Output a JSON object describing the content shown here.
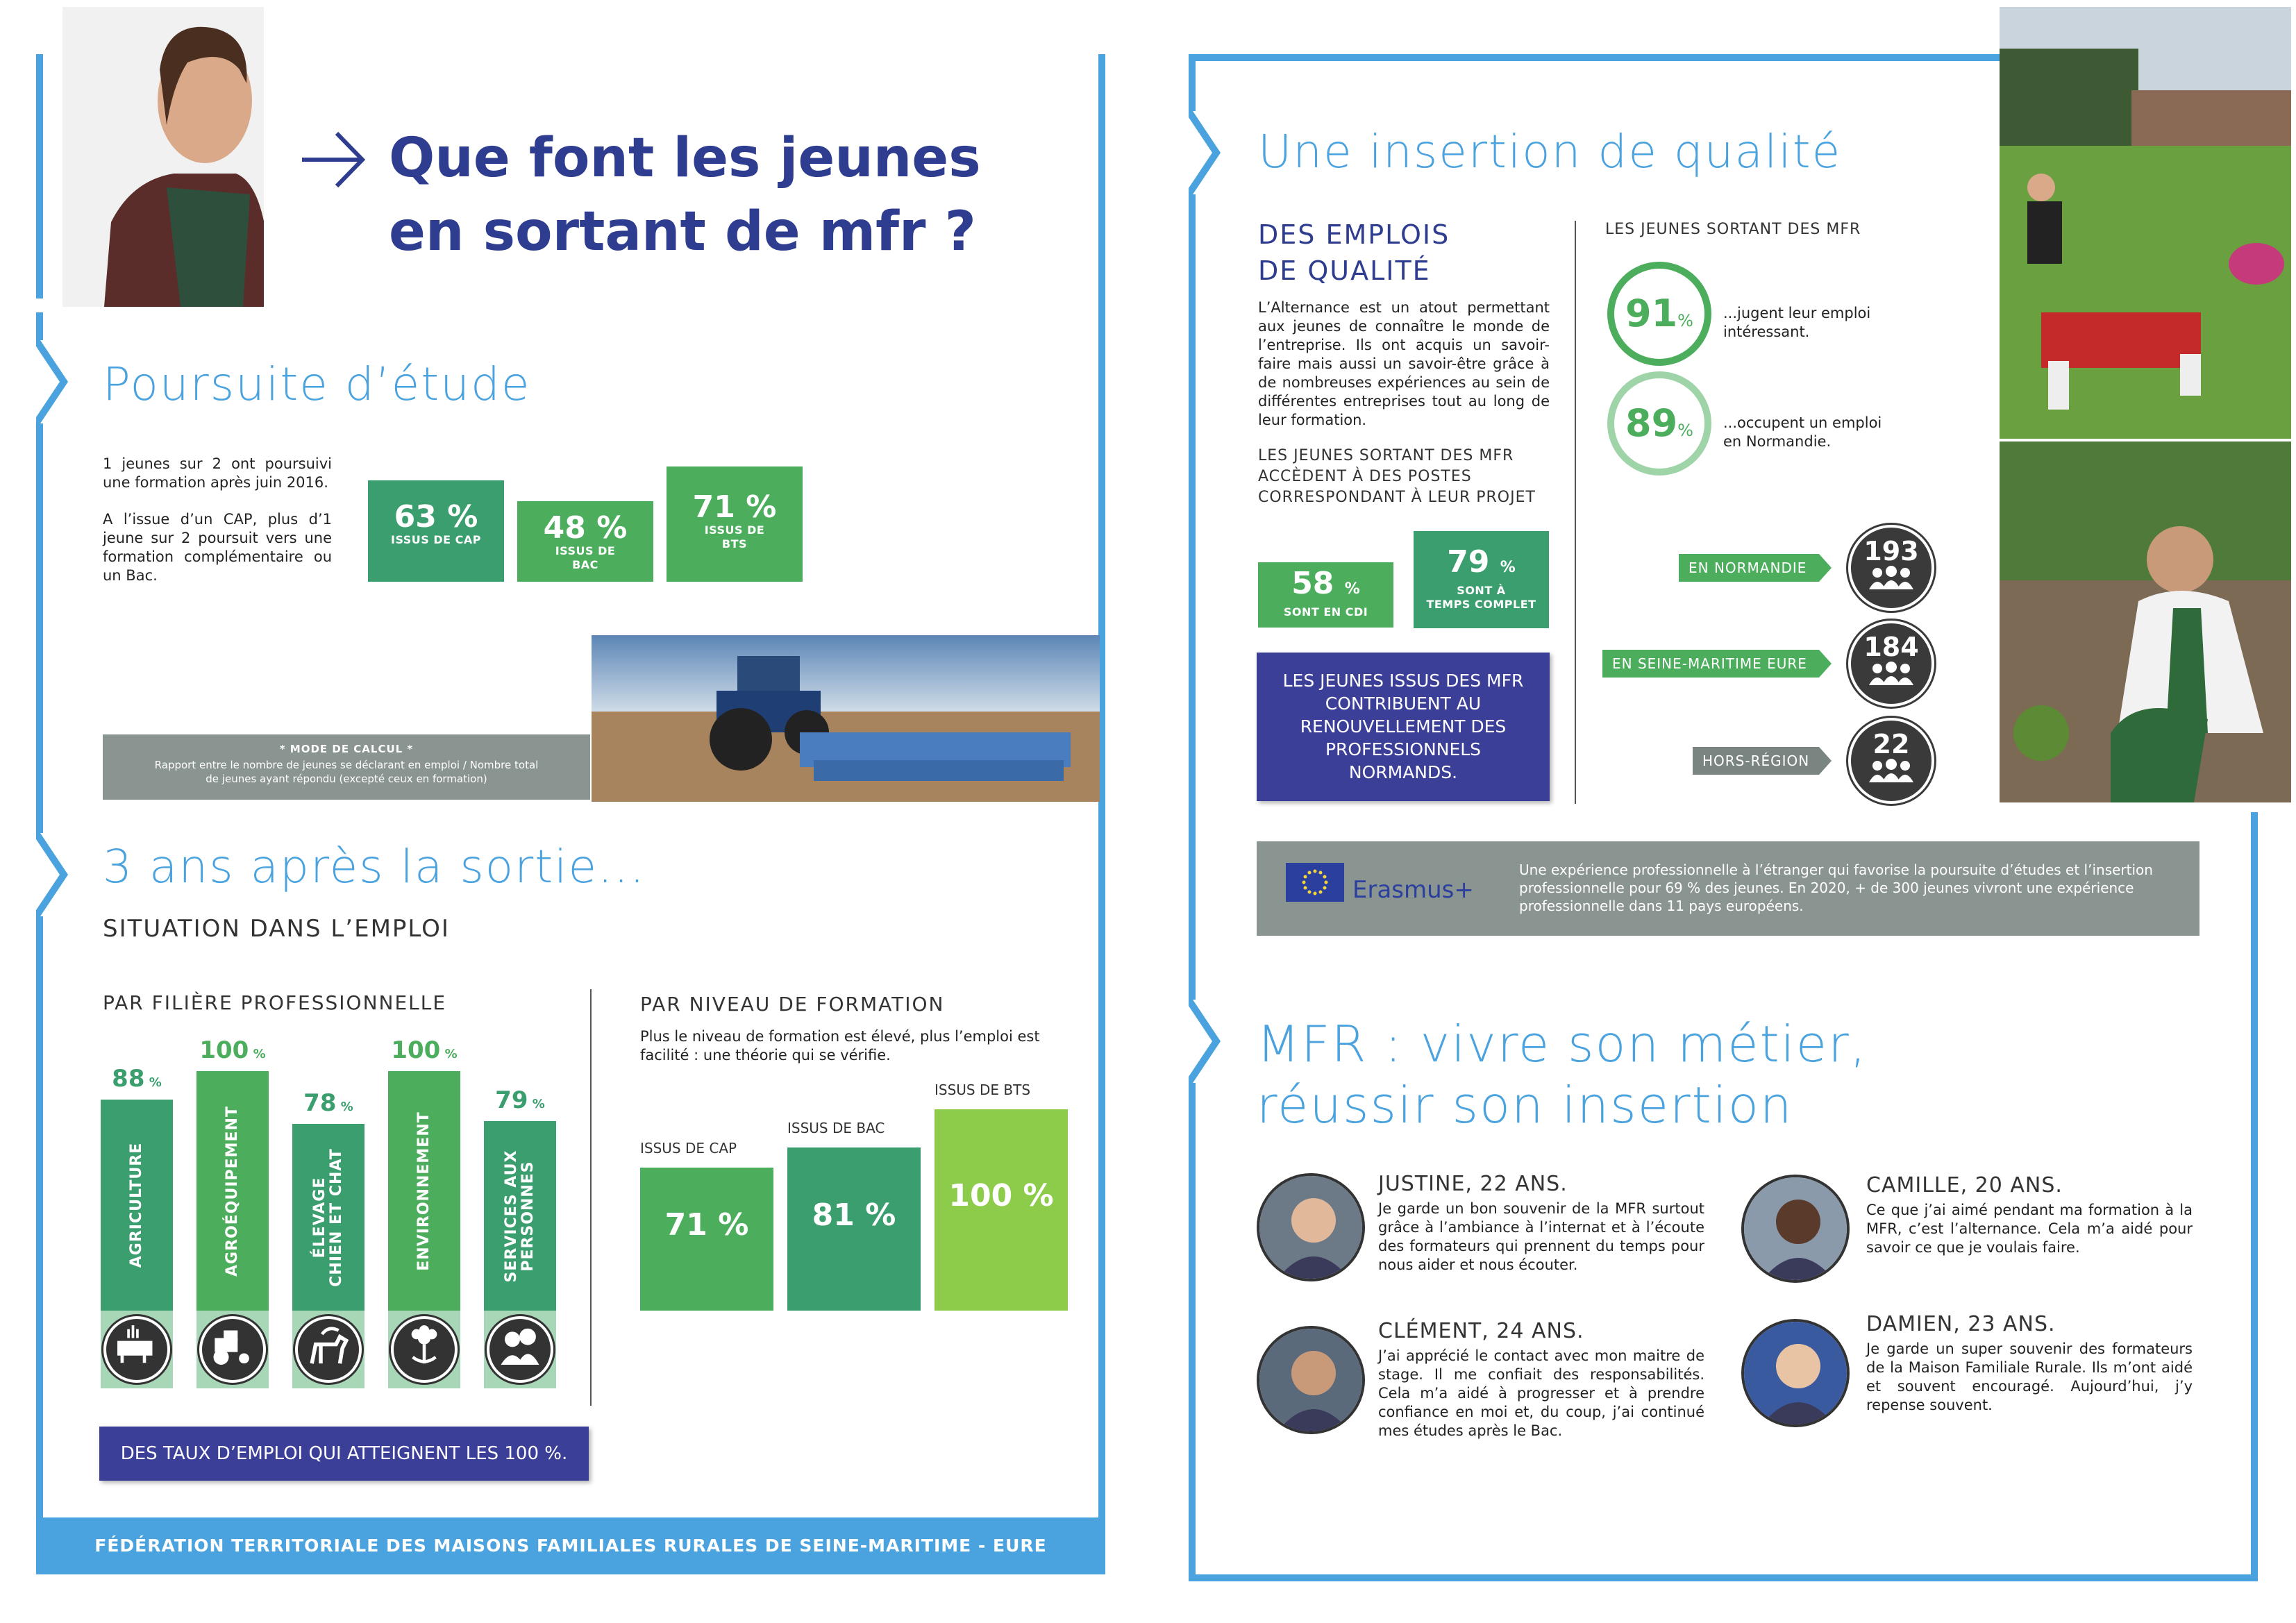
{
  "header": {
    "title_line1": "Que font les jeunes",
    "title_line2": "en sortant de mfr ?"
  },
  "poursuite": {
    "title": "Poursuite d’étude",
    "para1": "1 jeunes sur 2 ont poursuivi une formation après juin 2016.",
    "para2": "A l’issue d’un CAP, plus d’1 jeune sur 2 poursuit vers une formation complémentaire ou un Bac.",
    "boxes": [
      {
        "value": "63 %",
        "label": "ISSUS DE CAP"
      },
      {
        "value": "48 %",
        "label": "ISSUS DE BAC"
      },
      {
        "value": "71 %",
        "label": "ISSUS DE BTS"
      }
    ],
    "mode_title": "* MODE DE CALCUL *",
    "mode_text": "Rapport entre le nombre de jeunes se déclarant en emploi / Nombre total de jeunes ayant répondu (excepté ceux en formation)"
  },
  "trois_ans": {
    "title": "3 ans après la sortie...",
    "subtitle": "SITUATION DANS L’EMPLOI",
    "filiere_title": "PAR FILIÈRE PROFESSIONNELLE",
    "niveau_title": "PAR NIVEAU DE FORMATION",
    "niveau_text": "Plus le niveau de formation est élevé, plus l’emploi est facilité : une théorie qui se vérifie.",
    "banner": "DES TAUX D’EMPLOI QUI ATTEIGNENT LES 100 %."
  },
  "chart_data": [
    {
      "type": "bar",
      "title": "PAR FILIÈRE PROFESSIONNELLE",
      "categories": [
        "AGRICULTURE",
        "AGROÉQUIPEMENT",
        "ÉLEVAGE CHIEN ET CHAT",
        "ENVIRONNEMENT",
        "SERVICES AUX PERSONNES"
      ],
      "values": [
        88,
        100,
        78,
        100,
        79
      ],
      "unit": "%",
      "ylim": [
        0,
        100
      ]
    },
    {
      "type": "bar",
      "title": "PAR NIVEAU DE FORMATION",
      "categories": [
        "ISSUS DE CAP",
        "ISSUS DE BAC",
        "ISSUS DE BTS"
      ],
      "values": [
        71,
        81,
        100
      ],
      "unit": "%",
      "ylim": [
        0,
        100
      ]
    }
  ],
  "bars": [
    {
      "pct": "88",
      "label": "AGRICULTURE",
      "color": "#3b9e6e",
      "icon": "cow-icon"
    },
    {
      "pct": "100",
      "label": "AGROÉQUIPEMENT",
      "color": "#4cae5d",
      "icon": "tractor-icon"
    },
    {
      "pct": "78",
      "label": "ÉLEVAGE\nCHIEN ET CHAT",
      "color": "#3b9e6e",
      "icon": "dog-icon"
    },
    {
      "pct": "100",
      "label": "ENVIRONNEMENT",
      "color": "#4cae5d",
      "icon": "flower-icon"
    },
    {
      "pct": "79",
      "label": "SERVICES AUX\nPERSONNES",
      "color": "#3b9e6e",
      "icon": "people-icon"
    }
  ],
  "levels": [
    {
      "caption": "ISSUS DE CAP",
      "value": "71 %"
    },
    {
      "caption": "ISSUS DE BAC",
      "value": "81 %"
    },
    {
      "caption": "ISSUS DE BTS",
      "value": "100 %"
    }
  ],
  "insertion": {
    "title": "Une insertion de qualité",
    "emplois_title_1": "DES EMPLOIS",
    "emplois_title_2": "DE QUALITÉ",
    "emplois_text": "L’Alternance est un atout permettant aux jeunes de connaître le monde de l’entreprise. Ils ont acquis un savoir-faire mais aussi un savoir-être grâce à de nombreuses expériences au sein de différentes entreprises tout au long de leur formation.",
    "postes_text": "LES JEUNES SORTANT DES MFR ACCÈDENT À DES POSTES CORRESPONDANT À LEUR PROJET",
    "cdi_value": "58",
    "cdi_label": "SONT EN CDI",
    "complet_value": "79",
    "complet_label_1": "SONT À",
    "complet_label_2": "TEMPS COMPLET",
    "pct_sign": "%",
    "contrib_text": "LES JEUNES ISSUS DES MFR CONTRIBUENT AU RENOUVELLEMENT DES PROFESSIONNELS NORMANDS.",
    "right_title": "LES JEUNES SORTANT DES MFR",
    "ring1_value": "91",
    "ring1_text": "...jugent leur emploi intéressant.",
    "ring2_value": "89",
    "ring2_text": "...occupent un emploi en Normandie.",
    "regions": [
      {
        "label": "EN NORMANDIE",
        "value": "193"
      },
      {
        "label": "EN SEINE-MARITIME EURE",
        "value": "184"
      },
      {
        "label": "HORS-RÉGION",
        "value": "22"
      }
    ],
    "erasmus_logo": "Erasmus+",
    "erasmus_text": "Une expérience professionnelle à l’étranger qui favorise la poursuite d’études et l’insertion professionnelle pour 69 % des jeunes. En 2020, + de 300 jeunes vivront une expérience professionnelle dans 11 pays européens."
  },
  "mfr": {
    "title_1": "MFR : vivre son métier,",
    "title_2": "réussir son insertion",
    "testimonials": [
      {
        "name": "JUSTINE, 22 ANS.",
        "text": "Je garde un bon souvenir de la MFR surtout grâce à l’ambiance à l’internat et à l’écoute des formateurs qui prennent du temps pour nous aider et nous écouter."
      },
      {
        "name": "CAMILLE, 20 ANS.",
        "text": "Ce que j’ai aimé pendant ma formation à la MFR, c’est l’alternance. Cela m’a aidé pour savoir ce que je voulais faire."
      },
      {
        "name": "CLÉMENT, 24 ANS.",
        "text": "J’ai apprécié le contact avec mon maitre de stage. Il me confiait des responsabilités. Cela m’a aidé à progresser et à prendre confiance en moi et, du coup, j’ai continué mes études après le Bac."
      },
      {
        "name": "DAMIEN, 23 ANS.",
        "text": "Je garde un super souvenir des formateurs de la Maison Familiale Rurale. Ils m’ont aidé et souvent encouragé. Aujourd’hui, j’y repense souvent."
      }
    ]
  },
  "footer": {
    "text": "FÉDÉRATION TERRITORIALE DES MAISONS FAMILIALES RURALES DE SEINE-MARITIME - EURE"
  }
}
